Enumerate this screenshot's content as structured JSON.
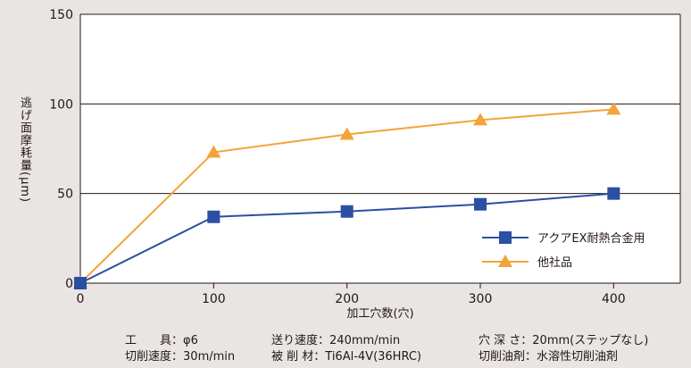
{
  "chart_data": {
    "type": "line",
    "x": [
      0,
      100,
      200,
      300,
      400
    ],
    "xticks": [
      "0",
      "100",
      "200",
      "300",
      "400"
    ],
    "xlim": [
      0,
      450
    ],
    "yticks": [
      "0",
      "50",
      "100",
      "150"
    ],
    "ylim": [
      0,
      150
    ],
    "xlabel": "加工穴数(穴)",
    "ylabel": "逃げ面摩耗量(μm)",
    "grid": "horizontal",
    "legend_position": "bottom-right",
    "series": [
      {
        "name": "アクアEX耐熱合金用",
        "values": [
          0,
          37,
          40,
          44,
          50
        ],
        "color": "#2b4fa3",
        "marker": "square"
      },
      {
        "name": "他社品",
        "values": [
          0,
          73,
          83,
          91,
          97
        ],
        "color": "#f3a33a",
        "marker": "triangle"
      }
    ]
  },
  "conditions": {
    "tool_label": "工　　具",
    "tool_value": "φ6",
    "cutting_speed_label": "切削速度",
    "cutting_speed_value": "30m/min",
    "feed_label": "送り速度",
    "feed_value": "240mm/min",
    "material_label": "被 削 材",
    "material_value": "Ti6Al-4V(36HRC)",
    "depth_label": "穴 深 さ",
    "depth_value": "20mm(ステップなし)",
    "coolant_label": "切削油剤",
    "coolant_value": "水溶性切削油剤"
  }
}
